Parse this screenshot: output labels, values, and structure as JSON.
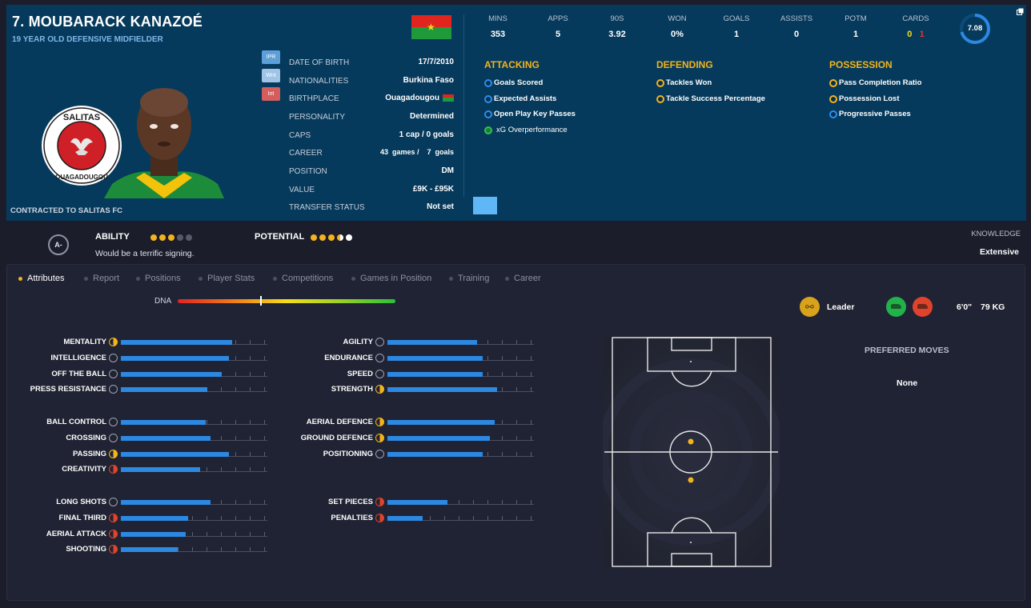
{
  "player": {
    "name": "7. MOUBARACK KANAZOÉ",
    "subtitle": "19 YEAR OLD DEFENSIVE MIDFIELDER",
    "contract": "CONTRACTED TO SALITAS FC",
    "club_crest_text_top": "SALITAS",
    "club_crest_text_bottom": "OUAGADOUGOU"
  },
  "side_buttons": [
    "IPR",
    "Wnt",
    "Int"
  ],
  "info": [
    {
      "label": "DATE OF BIRTH",
      "value": "17/7/2010"
    },
    {
      "label": "NATIONALITIES",
      "value": "Burkina Faso"
    },
    {
      "label": "BIRTHPLACE",
      "value": "Ouagadougou"
    },
    {
      "label": "PERSONALITY",
      "value": "Determined"
    },
    {
      "label": "CAPS",
      "value": "1 cap / 0 goals"
    },
    {
      "label": "CAREER",
      "value": "43  games /    7  goals"
    },
    {
      "label": "POSITION",
      "value": "DM"
    },
    {
      "label": "VALUE",
      "value": "£9K - £95K"
    },
    {
      "label": "TRANSFER STATUS",
      "value": "Not set"
    }
  ],
  "stats": [
    {
      "label": "MINS",
      "value": "353"
    },
    {
      "label": "APPS",
      "value": "5"
    },
    {
      "label": "90S",
      "value": "3.92"
    },
    {
      "label": "WON",
      "value": "0%"
    },
    {
      "label": "GOALS",
      "value": "1"
    },
    {
      "label": "ASSISTS",
      "value": "0"
    },
    {
      "label": "POTM",
      "value": "1"
    },
    {
      "label": "CARDS",
      "yellow": "0",
      "red": "1"
    }
  ],
  "rating": "7.08",
  "roles": {
    "attacking": {
      "title": "ATTACKING",
      "items": [
        "Goals Scored",
        "Expected Assists",
        "Open Play Key Passes",
        "xG Overperformance"
      ]
    },
    "defending": {
      "title": "DEFENDING",
      "items": [
        "Tackles Won",
        "Tackle Success Percentage"
      ]
    },
    "possession": {
      "title": "POSSESSION",
      "items": [
        "Pass Completion Ratio",
        "Possession Lost",
        "Progressive Passes"
      ]
    }
  },
  "ability": {
    "grade": "A-",
    "ability_label": "ABILITY",
    "potential_label": "POTENTIAL",
    "ability_stars": 3,
    "potential_stars": 3.5,
    "note": "Would be a terrific signing.",
    "knowledge_label": "KNOWLEDGE",
    "knowledge_value": "Extensive"
  },
  "tabs": [
    "Attributes",
    "Report",
    "Positions",
    "Player Stats",
    "Competitions",
    "Games in Position",
    "Training",
    "Career"
  ],
  "dna": {
    "label": "DNA",
    "value": 0.38
  },
  "attributes": {
    "left": [
      [
        {
          "name": "MENTALITY",
          "value": 0.76,
          "icon": "yellow"
        },
        {
          "name": "INTELLIGENCE",
          "value": 0.74,
          "icon": "grey"
        },
        {
          "name": "OFF THE BALL",
          "value": 0.69,
          "icon": "grey"
        },
        {
          "name": "PRESS RESISTANCE",
          "value": 0.59,
          "icon": "grey"
        }
      ],
      [
        {
          "name": "BALL CONTROL",
          "value": 0.58,
          "icon": "grey"
        },
        {
          "name": "CROSSING",
          "value": 0.61,
          "icon": "grey"
        },
        {
          "name": "PASSING",
          "value": 0.74,
          "icon": "yellow"
        },
        {
          "name": "CREATIVITY",
          "value": 0.54,
          "icon": "red"
        }
      ],
      [
        {
          "name": "LONG SHOTS",
          "value": 0.61,
          "icon": "grey"
        },
        {
          "name": "FINAL THIRD",
          "value": 0.46,
          "icon": "red"
        },
        {
          "name": "AERIAL ATTACK",
          "value": 0.44,
          "icon": "red"
        },
        {
          "name": "SHOOTING",
          "value": 0.39,
          "icon": "red"
        }
      ]
    ],
    "right": [
      [
        {
          "name": "AGILITY",
          "value": 0.61,
          "icon": "grey"
        },
        {
          "name": "ENDURANCE",
          "value": 0.65,
          "icon": "grey"
        },
        {
          "name": "SPEED",
          "value": 0.65,
          "icon": "grey"
        },
        {
          "name": "STRENGTH",
          "value": 0.75,
          "icon": "yellow"
        }
      ],
      [
        {
          "name": "AERIAL DEFENCE",
          "value": 0.73,
          "icon": "yellow"
        },
        {
          "name": "GROUND DEFENCE",
          "value": 0.7,
          "icon": "yellow"
        },
        {
          "name": "POSITIONING",
          "value": 0.65,
          "icon": "grey"
        }
      ],
      [
        {
          "name": "SET PIECES",
          "value": 0.41,
          "icon": "red"
        },
        {
          "name": "PENALTIES",
          "value": 0.24,
          "icon": "red"
        }
      ]
    ]
  },
  "traits": {
    "leader": "Leader",
    "height": "6'0\"",
    "weight": "79 KG"
  },
  "preferred_moves": {
    "title": "PREFERRED MOVES",
    "value": "None"
  },
  "colors": {
    "accent": "#2b89e2",
    "gold": "#f2b41d",
    "panel": "#063a5c"
  }
}
